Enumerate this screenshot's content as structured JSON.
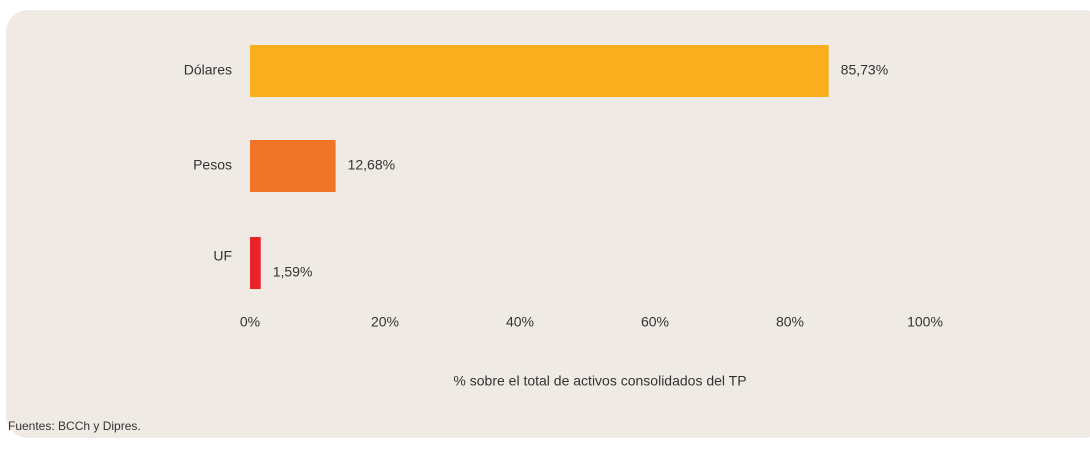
{
  "chart_data": {
    "type": "hbar",
    "categories": [
      "Dólares",
      "Pesos",
      "UF"
    ],
    "values": [
      85.73,
      12.68,
      1.59
    ],
    "value_labels": [
      "85,73%",
      "12,68%",
      "1,59%"
    ],
    "colors": [
      "#f9ae1b",
      "#f07427",
      "#e8232c"
    ],
    "xlim": [
      0,
      100
    ],
    "xticks": [
      {
        "value": 0,
        "label": "0%"
      },
      {
        "value": 20,
        "label": "20%"
      },
      {
        "value": 40,
        "label": "40%"
      },
      {
        "value": 60,
        "label": "60%"
      },
      {
        "value": 80,
        "label": "80%"
      },
      {
        "value": 100,
        "label": "100%"
      }
    ],
    "x_label": "% sobre el total de activos consolidados del TP",
    "source": "Fuentes: BCCh y Dipres."
  }
}
